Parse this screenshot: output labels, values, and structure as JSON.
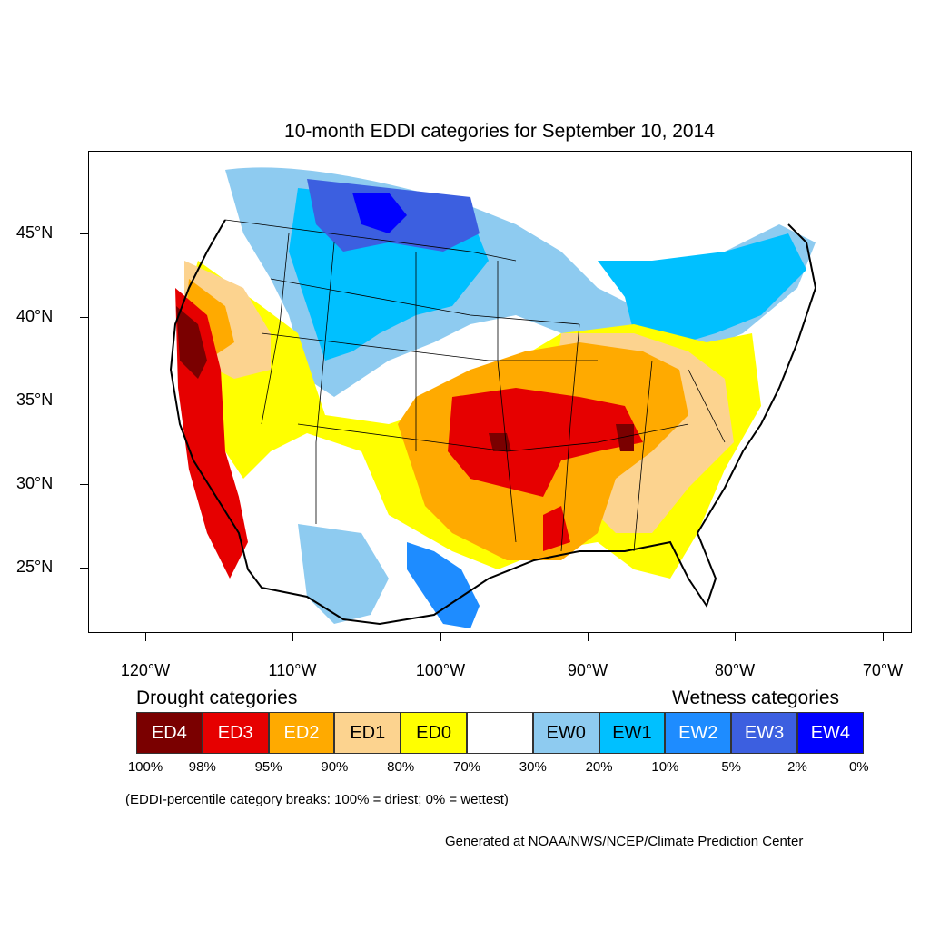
{
  "map": {
    "title": "10-month EDDI categories for September 10, 2014",
    "lat_labels": [
      "45°N",
      "40°N",
      "35°N",
      "30°N",
      "25°N"
    ],
    "lon_labels": [
      "120°W",
      "110°W",
      "100°W",
      "90°W",
      "80°W",
      "70°W"
    ],
    "lat_values": [
      45,
      40,
      35,
      30,
      25
    ],
    "lon_values": [
      -120,
      -110,
      -100,
      -90,
      -80,
      -70
    ]
  },
  "legend": {
    "drought_heading": "Drought categories",
    "wetness_heading": "Wetness categories",
    "categories": [
      {
        "label": "ED4",
        "color": "#7a0000",
        "text_color": "#ffffff"
      },
      {
        "label": "ED3",
        "color": "#e60000",
        "text_color": "#ffffff"
      },
      {
        "label": "ED2",
        "color": "#ffaa00",
        "text_color": "#ffffff"
      },
      {
        "label": "ED1",
        "color": "#fcd38f",
        "text_color": "#000000"
      },
      {
        "label": "ED0",
        "color": "#ffff00",
        "text_color": "#000000"
      },
      {
        "label": "",
        "color": "#ffffff",
        "text_color": "#000000"
      },
      {
        "label": "EW0",
        "color": "#8ecbf0",
        "text_color": "#000000"
      },
      {
        "label": "EW1",
        "color": "#00c0ff",
        "text_color": "#000000"
      },
      {
        "label": "EW2",
        "color": "#1e8cff",
        "text_color": "#ffffff"
      },
      {
        "label": "EW3",
        "color": "#3c5fe0",
        "text_color": "#ffffff"
      },
      {
        "label": "EW4",
        "color": "#0000ff",
        "text_color": "#ffffff"
      }
    ],
    "percentiles": [
      "100%",
      "98%",
      "95%",
      "90%",
      "80%",
      "70%",
      "30%",
      "20%",
      "10%",
      "5%",
      "2%",
      "0%"
    ],
    "note": "(EDDI-percentile category breaks: 100% = driest; 0% = wettest)"
  },
  "credit": "Generated at NOAA/NWS/NCEP/Climate Prediction Center"
}
